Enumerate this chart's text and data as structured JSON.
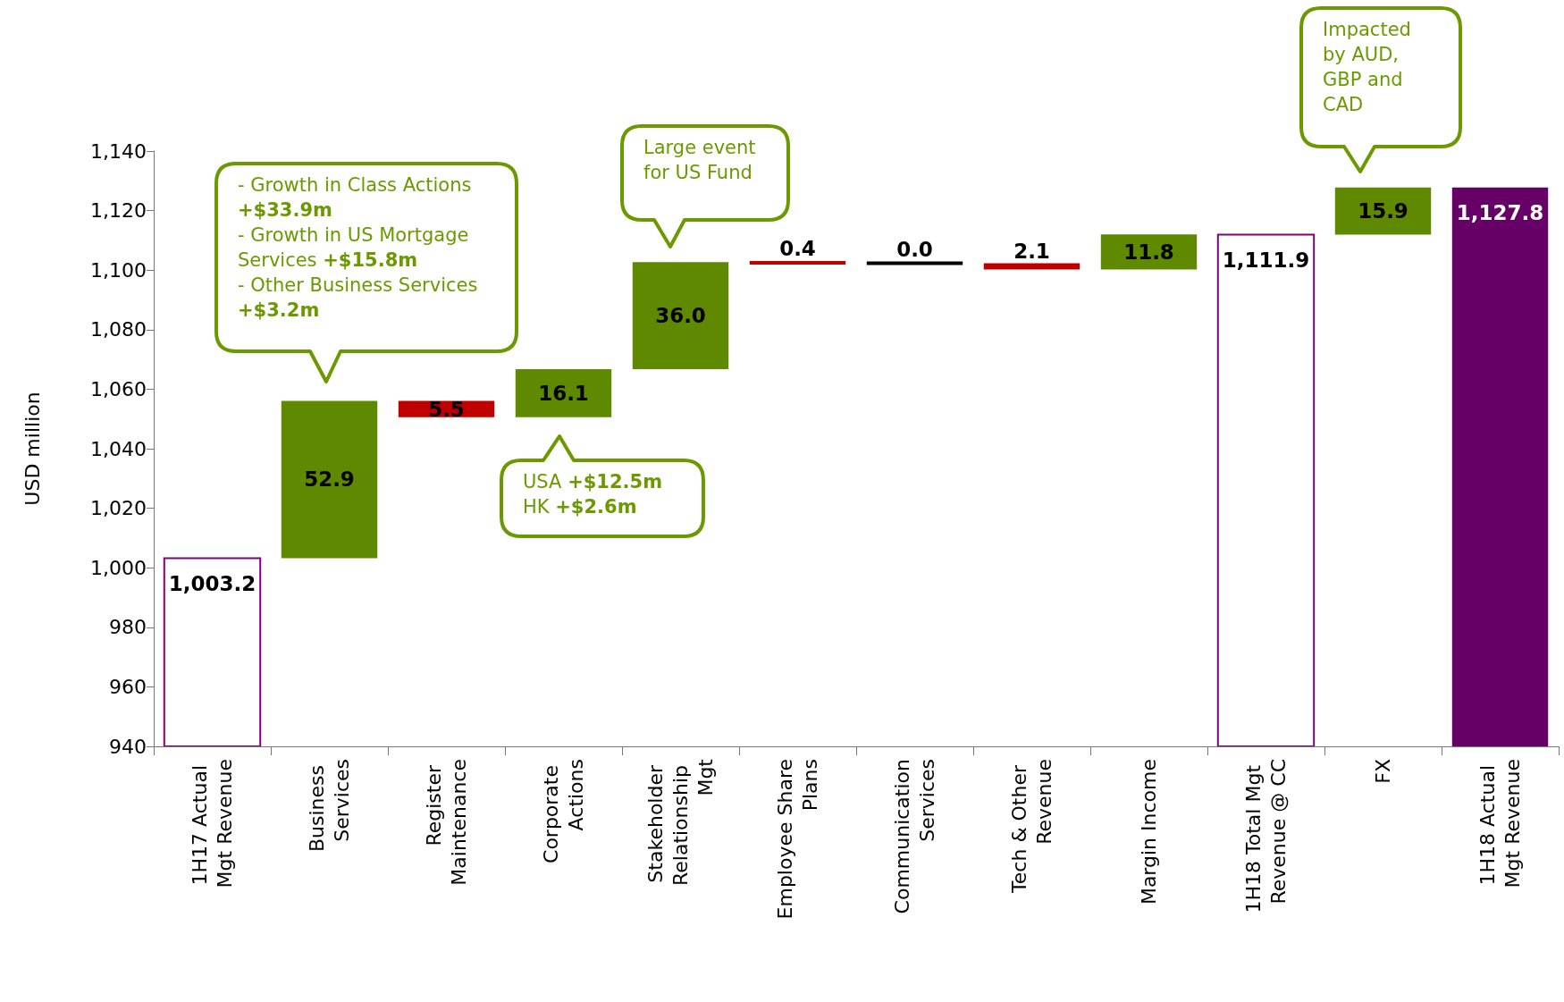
{
  "chart_data": {
    "type": "bar",
    "ylabel": "USD million",
    "categories": [
      "1H17 Actual Mgt Revenue",
      "Business Services",
      "Register Maintenance",
      "Corporate Actions",
      "Stakeholder Relationship Mgt",
      "Employee Share Plans",
      "Communication Services",
      "Tech & Other Revenue",
      "Margin Income",
      "1H18 Total Mgt Revenue @ CC",
      "FX",
      "1H18 Actual Mgt Revenue"
    ],
    "values": [
      1003.2,
      52.9,
      -5.5,
      16.1,
      36.0,
      -0.4,
      0.0,
      -2.1,
      11.8,
      1111.9,
      15.9,
      1127.8
    ],
    "base": [
      0,
      1003.2,
      1056.1,
      1050.6,
      1066.7,
      1102.7,
      1102.3,
      1102.3,
      1100.2,
      0,
      1111.9,
      0
    ],
    "colors": [
      "#ffffff",
      "#5f8a00",
      "#c00000",
      "#5f8a00",
      "#5f8a00",
      "#c00000",
      "#000000",
      "#c00000",
      "#5f8a00",
      "#ffffff",
      "#5f8a00",
      "#660066"
    ],
    "value_labels": [
      "1,003.2",
      "52.9",
      "5.5",
      "16.1",
      "36.0",
      "0.4",
      "0.0",
      "2.1",
      "11.8",
      "1,111.9",
      "15.9",
      "1,127.8"
    ],
    "ylim": [
      940,
      1140
    ],
    "yticks": [
      {
        "value": 940,
        "label": "940"
      },
      {
        "value": 960,
        "label": "960"
      },
      {
        "value": 980,
        "label": "980"
      },
      {
        "value": 1000,
        "label": "1,000"
      },
      {
        "value": 1020,
        "label": "1,020"
      },
      {
        "value": 1040,
        "label": "1,040"
      },
      {
        "value": 1060,
        "label": "1,060"
      },
      {
        "value": 1080,
        "label": "1,080"
      },
      {
        "value": 1100,
        "label": "1,100"
      },
      {
        "value": 1120,
        "label": "1,120"
      },
      {
        "value": 1140,
        "label": "1,140"
      }
    ],
    "annotations": [
      "- Growth in Class Actions\n+$33.9m\n- Growth in US Mortgage\nServices +$15.8m\n- Other Business Services\n+$3.2m",
      "USA +$12.5m\nHK +$2.6m",
      "Large event\nfor US Fund",
      "Impacted\nby AUD,\nGBP and\nCAD"
    ],
    "grid": false
  }
}
